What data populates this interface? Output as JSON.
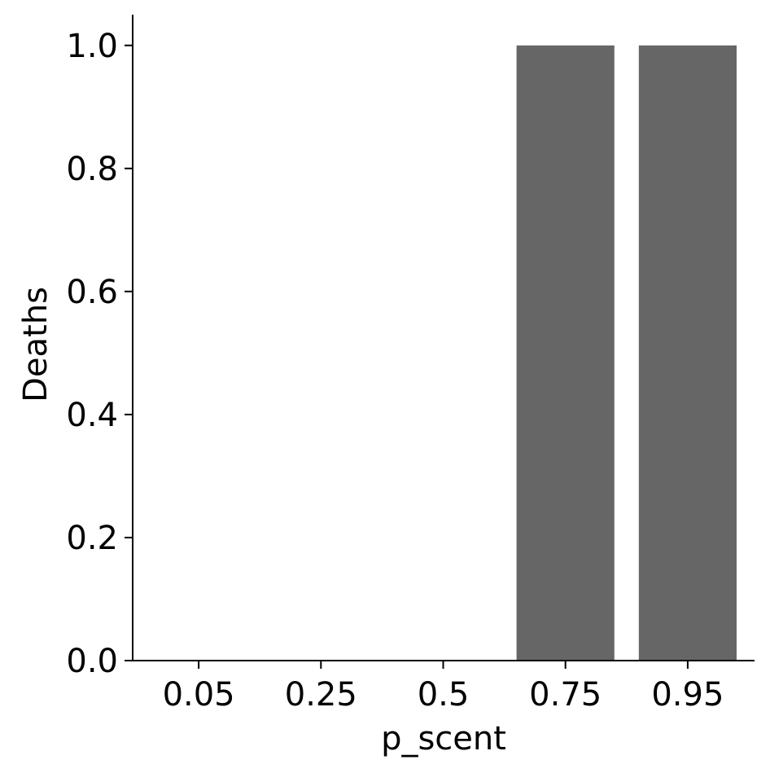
{
  "chart_data": {
    "type": "bar",
    "categories": [
      "0.05",
      "0.25",
      "0.5",
      "0.75",
      "0.95"
    ],
    "values": [
      0,
      0,
      0,
      1.0,
      1.0
    ],
    "xlabel": "p_scent",
    "ylabel": "Deaths",
    "ylim": [
      0,
      1.05
    ],
    "yticks": [
      "0.0",
      "0.2",
      "0.4",
      "0.6",
      "0.8",
      "1.0"
    ],
    "bar_color": "#666666",
    "grid": false,
    "legend": "none"
  }
}
